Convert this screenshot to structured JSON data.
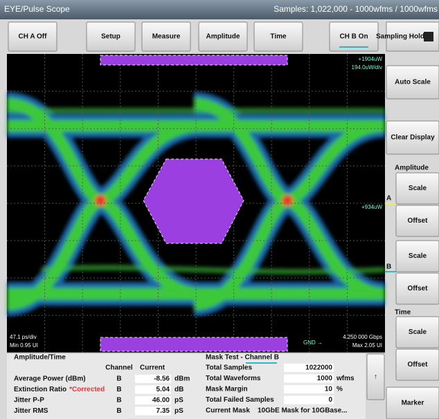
{
  "header": {
    "title": "EYE/Pulse Scope",
    "samples": "Samples: 1,022,000 - 1000wfms / 1000wfms"
  },
  "toolbar": {
    "buttons": [
      "CH A Off",
      "Setup",
      "Measure",
      "Amplitude",
      "Time",
      "CH B On"
    ],
    "sampling": "Sampling Hold"
  },
  "scope": {
    "top_level": "+1904uW",
    "vertical_scale": "194.0uW/div",
    "ref_level": "+934uW",
    "time_scale": "47.1 ps/div",
    "min": "Min 0.95 UI",
    "bit_rate": "4.250 000 Gbps",
    "max": "Max 2.05 UI",
    "ground": "GND →",
    "marker_a": "A",
    "marker_b": "B"
  },
  "side_panel": {
    "auto_scale": "Auto Scale",
    "clear_display": "Clear Display",
    "amplitude": "Amplitude",
    "a_scale": "Scale",
    "a_offset": "Offset",
    "b_scale": "Scale",
    "b_offset": "Offset",
    "time": "Time",
    "t_scale": "Scale",
    "t_offset": "Offset",
    "marker": "Marker"
  },
  "amplitude_time": {
    "title": "Amplitude/Time",
    "columns": [
      "Channel",
      "Current"
    ],
    "rows": [
      {
        "label": "Average Power (dBm)",
        "channel": "B",
        "value": "-8.56",
        "unit": "dBm"
      },
      {
        "label": "Extinction Ratio",
        "note": "*Corrected",
        "channel": "B",
        "value": "5.04",
        "unit": "dB"
      },
      {
        "label": "Jitter P-P",
        "channel": "B",
        "value": "46.00",
        "unit": "pS"
      },
      {
        "label": "Jitter RMS",
        "channel": "B",
        "value": "7.35",
        "unit": "pS"
      }
    ]
  },
  "mask_test": {
    "title": "Mask Test - Channel B",
    "rows": [
      {
        "label": "Total Samples",
        "value": "1022000"
      },
      {
        "label": "Total Waveforms",
        "value": "1000",
        "unit": "wfms"
      },
      {
        "label": "Mask Margin",
        "value": "10",
        "unit": "%"
      },
      {
        "label": "Total Failed Samples",
        "value": "0"
      },
      {
        "label": "Current Mask",
        "value": "10GbE Mask for 10GBase..."
      }
    ]
  },
  "up": "↑"
}
